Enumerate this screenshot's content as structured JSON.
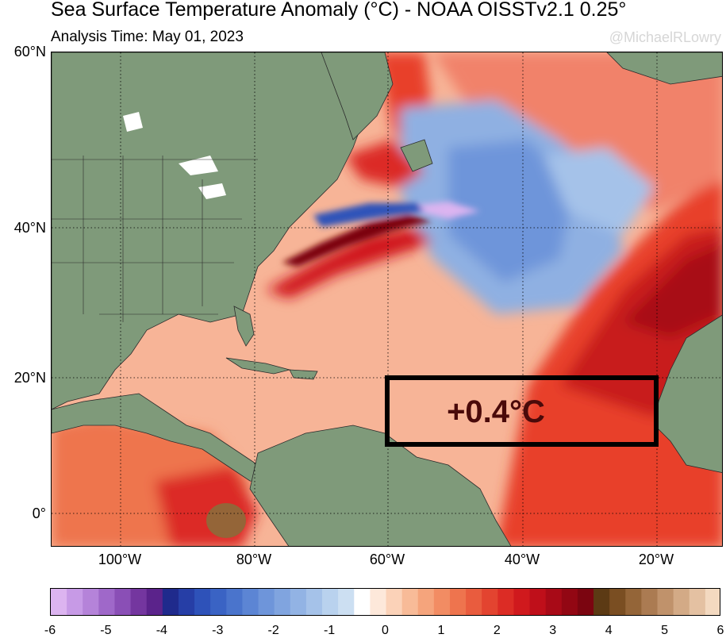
{
  "title": "Sea Surface Temperature Anomaly (°C) - NOAA OISSTv2.1 0.25°",
  "subtitle": "Analysis Time: May 01, 2023",
  "credit": "@MichaelRLowry",
  "box_annotation": "+0.4°C",
  "lat_labels": [
    "60°N",
    "40°N",
    "20°N",
    "0°"
  ],
  "lon_labels": [
    "100°W",
    "80°W",
    "60°W",
    "40°W",
    "20°W"
  ],
  "colorbar": {
    "ticks": [
      "-6",
      "-5",
      "-4",
      "-3",
      "-2",
      "-1",
      "0",
      "1",
      "2",
      "3",
      "4",
      "5",
      "6"
    ],
    "colors": [
      "#dcb4f0",
      "#c79ae6",
      "#b583d9",
      "#9f68c9",
      "#8a4fb6",
      "#74369f",
      "#5b238b",
      "#1f2a8c",
      "#263ea6",
      "#2e52b9",
      "#3a63c4",
      "#4a74cc",
      "#5c85d4",
      "#6e95da",
      "#80a4df",
      "#92b3e4",
      "#a5c2e9",
      "#b9d2ee",
      "#ccdff2",
      "#ffffff",
      "#fde8da",
      "#fbd2b8",
      "#f8bb98",
      "#f5a47c",
      "#f28c63",
      "#ee744e",
      "#e95c3e",
      "#e34430",
      "#dc2c25",
      "#d0191d",
      "#bf0f1a",
      "#a80a17",
      "#920713",
      "#7b0510",
      "#5c3a14",
      "#7a4e22",
      "#946538",
      "#ab7b52",
      "#c0926b",
      "#d3aa86",
      "#e4c1a2",
      "#f3d9c0"
    ]
  }
}
